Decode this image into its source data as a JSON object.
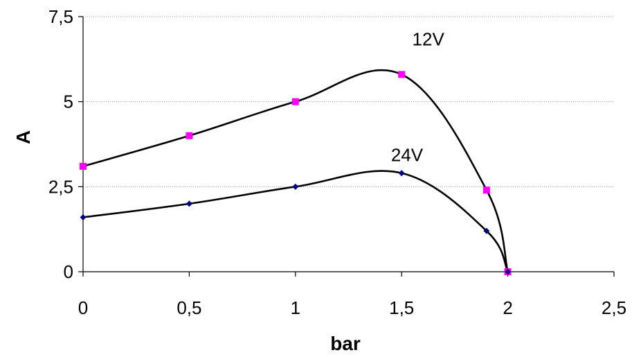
{
  "chart_data": {
    "type": "scatter",
    "xlabel": "bar",
    "ylabel": "A",
    "xlim": [
      0,
      2.5
    ],
    "ylim": [
      0,
      7.5
    ],
    "x_ticks": [
      "0",
      "0,5",
      "1",
      "1,5",
      "2",
      "2,5"
    ],
    "y_ticks": [
      "0",
      "2,5",
      "5",
      "7,5"
    ],
    "grid": "horizontal dotted",
    "legend": "none",
    "smoothed_lines": true,
    "series": [
      {
        "name": "12V",
        "marker": "square",
        "marker_color": "#ff00ff",
        "line_color": "#000000",
        "points": [
          [
            0,
            3.1
          ],
          [
            0.5,
            4.0
          ],
          [
            1.0,
            5.0
          ],
          [
            1.5,
            5.8
          ],
          [
            1.9,
            2.4
          ],
          [
            2.0,
            0.0
          ]
        ]
      },
      {
        "name": "24V",
        "marker": "diamond",
        "marker_color": "#000080",
        "line_color": "#000000",
        "points": [
          [
            0,
            1.6
          ],
          [
            0.5,
            2.0
          ],
          [
            1.0,
            2.5
          ],
          [
            1.5,
            2.9
          ],
          [
            1.9,
            1.2
          ],
          [
            2.0,
            0.0
          ]
        ]
      }
    ]
  }
}
